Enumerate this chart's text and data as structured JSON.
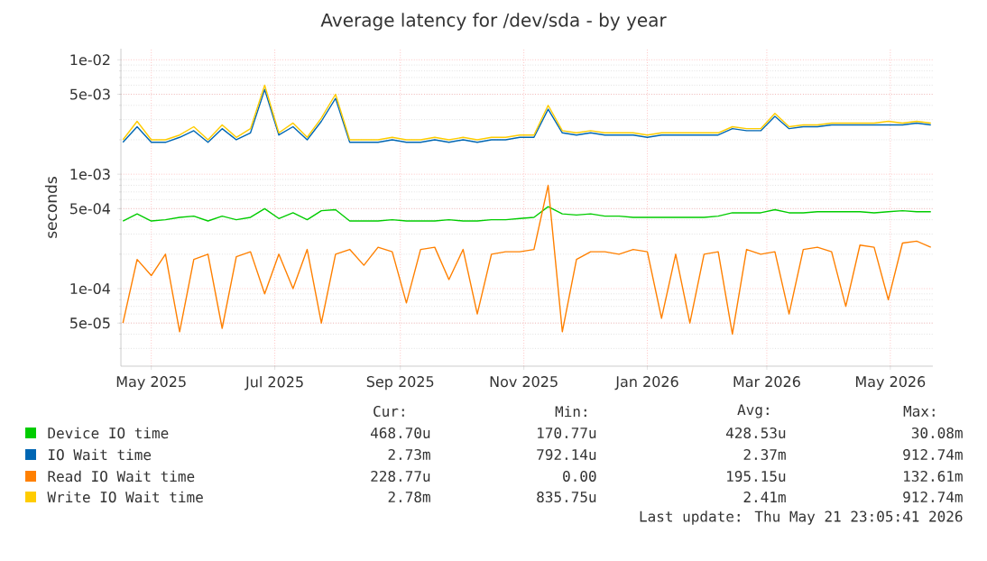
{
  "chart_data": {
    "type": "line",
    "title": "Average latency for /dev/sda - by year",
    "ylabel": "seconds",
    "log": "y",
    "grid": true,
    "legend": "bottom",
    "x": [
      "2025-04-17",
      "2025-04-24",
      "2025-05-01",
      "2025-05-08",
      "2025-05-15",
      "2025-05-22",
      "2025-05-29",
      "2025-06-05",
      "2025-06-12",
      "2025-06-19",
      "2025-06-26",
      "2025-07-03",
      "2025-07-10",
      "2025-07-17",
      "2025-07-24",
      "2025-07-31",
      "2025-08-07",
      "2025-08-14",
      "2025-08-21",
      "2025-08-28",
      "2025-09-04",
      "2025-09-11",
      "2025-09-18",
      "2025-09-25",
      "2025-10-02",
      "2025-10-09",
      "2025-10-16",
      "2025-10-23",
      "2025-10-30",
      "2025-11-06",
      "2025-11-13",
      "2025-11-20",
      "2025-11-27",
      "2025-12-04",
      "2025-12-11",
      "2025-12-18",
      "2025-12-25",
      "2026-01-01",
      "2026-01-08",
      "2026-01-15",
      "2026-01-22",
      "2026-01-29",
      "2026-02-05",
      "2026-02-12",
      "2026-02-19",
      "2026-02-26",
      "2026-03-05",
      "2026-03-12",
      "2026-03-19",
      "2026-03-26",
      "2026-04-02",
      "2026-04-09",
      "2026-04-16",
      "2026-04-23",
      "2026-04-30",
      "2026-05-07",
      "2026-05-14",
      "2026-05-21"
    ],
    "xlim": [
      "2025-04-16",
      "2026-05-22"
    ],
    "xticks": [
      {
        "value": "2025-05-01",
        "label": "May 2025"
      },
      {
        "value": "2025-07-01",
        "label": "Jul 2025"
      },
      {
        "value": "2025-09-01",
        "label": "Sep 2025"
      },
      {
        "value": "2025-11-01",
        "label": "Nov 2025"
      },
      {
        "value": "2026-01-01",
        "label": "Jan 2026"
      },
      {
        "value": "2026-03-01",
        "label": "Mar 2026"
      },
      {
        "value": "2026-05-01",
        "label": "May 2026"
      }
    ],
    "ylim": [
      2.1e-05,
      0.0125
    ],
    "yticks": [
      {
        "value": 5e-05,
        "label": "5e-05"
      },
      {
        "value": 0.0001,
        "label": "1e-04"
      },
      {
        "value": 0.0005,
        "label": "5e-04"
      },
      {
        "value": 0.001,
        "label": "1e-03"
      },
      {
        "value": 0.005,
        "label": "5e-03"
      },
      {
        "value": 0.01,
        "label": "1e-02"
      }
    ],
    "series": [
      {
        "name": "Device IO time",
        "color": "#00cc00",
        "values": [
          0.00039,
          0.00045,
          0.00039,
          0.0004,
          0.00042,
          0.00043,
          0.00039,
          0.00043,
          0.0004,
          0.00042,
          0.0005,
          0.00041,
          0.00046,
          0.0004,
          0.00048,
          0.00049,
          0.00039,
          0.00039,
          0.00039,
          0.0004,
          0.00039,
          0.00039,
          0.00039,
          0.0004,
          0.00039,
          0.00039,
          0.0004,
          0.0004,
          0.00041,
          0.00042,
          0.00052,
          0.00045,
          0.00044,
          0.00045,
          0.00043,
          0.00043,
          0.00042,
          0.00042,
          0.00042,
          0.00042,
          0.00042,
          0.00042,
          0.00043,
          0.00046,
          0.00046,
          0.00046,
          0.00049,
          0.00046,
          0.00046,
          0.00047,
          0.00047,
          0.00047,
          0.00047,
          0.00046,
          0.00047,
          0.00048,
          0.00047,
          0.00047
        ]
      },
      {
        "name": "IO Wait time",
        "color": "#0066b3",
        "values": [
          0.0019,
          0.0026,
          0.0019,
          0.0019,
          0.0021,
          0.0024,
          0.0019,
          0.0025,
          0.002,
          0.0023,
          0.0055,
          0.0022,
          0.0026,
          0.002,
          0.0029,
          0.0046,
          0.0019,
          0.0019,
          0.0019,
          0.002,
          0.0019,
          0.0019,
          0.002,
          0.0019,
          0.002,
          0.0019,
          0.002,
          0.002,
          0.0021,
          0.0021,
          0.0037,
          0.0023,
          0.0022,
          0.0023,
          0.0022,
          0.0022,
          0.0022,
          0.0021,
          0.0022,
          0.0022,
          0.0022,
          0.0022,
          0.0022,
          0.0025,
          0.0024,
          0.0024,
          0.0032,
          0.0025,
          0.0026,
          0.0026,
          0.0027,
          0.0027,
          0.0027,
          0.0027,
          0.0027,
          0.0027,
          0.0028,
          0.0027
        ]
      },
      {
        "name": "Read IO Wait time",
        "color": "#ff8000",
        "values": [
          5e-05,
          0.00018,
          0.00013,
          0.0002,
          4.2e-05,
          0.00018,
          0.0002,
          4.5e-05,
          0.00019,
          0.00021,
          9e-05,
          0.0002,
          0.0001,
          0.00022,
          5e-05,
          0.0002,
          0.00022,
          0.00016,
          0.00023,
          0.00021,
          7.5e-05,
          0.00022,
          0.00023,
          0.00012,
          0.00022,
          6e-05,
          0.0002,
          0.00021,
          0.00021,
          0.00022,
          0.0008,
          4.2e-05,
          0.00018,
          0.00021,
          0.00021,
          0.0002,
          0.00022,
          0.00021,
          5.5e-05,
          0.0002,
          5e-05,
          0.0002,
          0.00021,
          4e-05,
          0.00022,
          0.0002,
          0.00021,
          6e-05,
          0.00022,
          0.00023,
          0.00021,
          7e-05,
          0.00024,
          0.00023,
          8e-05,
          0.00025,
          0.00026,
          0.00023
        ]
      },
      {
        "name": "Write IO Wait time",
        "color": "#ffcc00",
        "values": [
          0.002,
          0.0029,
          0.002,
          0.002,
          0.0022,
          0.0026,
          0.002,
          0.0027,
          0.0021,
          0.0025,
          0.006,
          0.0023,
          0.0028,
          0.0021,
          0.0031,
          0.005,
          0.002,
          0.002,
          0.002,
          0.0021,
          0.002,
          0.002,
          0.0021,
          0.002,
          0.0021,
          0.002,
          0.0021,
          0.0021,
          0.0022,
          0.0022,
          0.004,
          0.0024,
          0.0023,
          0.0024,
          0.0023,
          0.0023,
          0.0023,
          0.0022,
          0.0023,
          0.0023,
          0.0023,
          0.0023,
          0.0023,
          0.0026,
          0.0025,
          0.0025,
          0.0034,
          0.0026,
          0.0027,
          0.0027,
          0.0028,
          0.0028,
          0.0028,
          0.0028,
          0.0029,
          0.0028,
          0.0029,
          0.0028
        ]
      }
    ],
    "annotations": [
      "Cur:",
      "Min:",
      "Avg:",
      "Max:",
      "468.70u",
      "170.77u",
      "428.53u",
      "30.08m",
      "2.73m",
      "792.14u",
      "2.37m",
      "912.74m",
      "228.77u",
      "0.00",
      "195.15u",
      "132.61m",
      "2.78m",
      "835.75u",
      "2.41m",
      "912.74m",
      "Last update: Thu May 21 23:05:41 2026"
    ]
  }
}
